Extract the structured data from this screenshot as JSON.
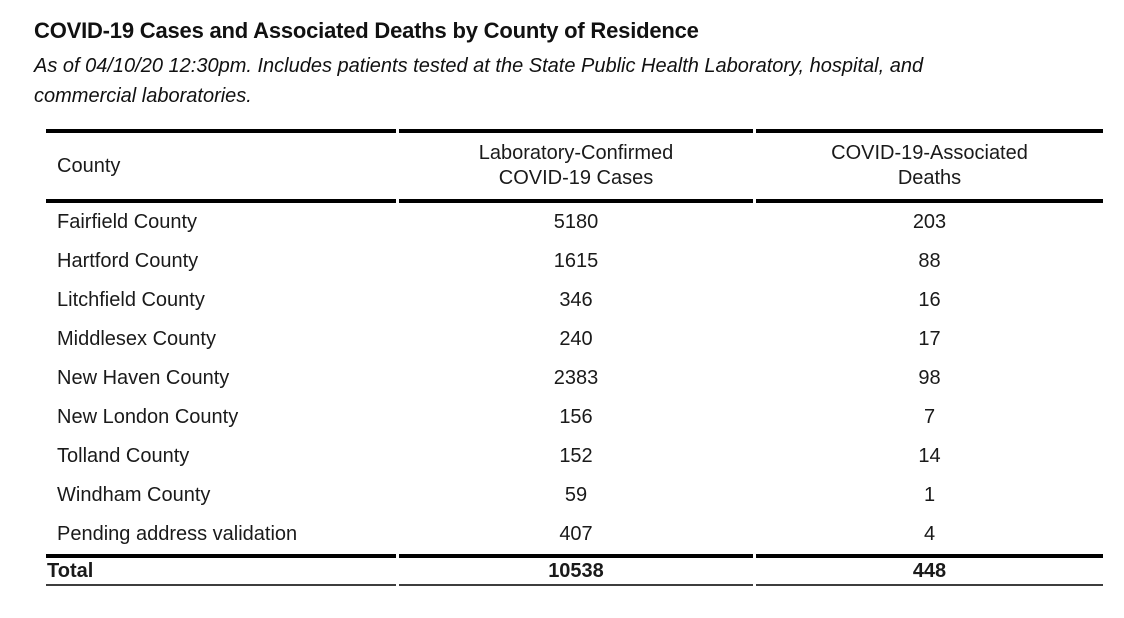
{
  "page": {
    "title": "COVID-19 Cases and Associated Deaths by County of Residence",
    "subtitle_line1": "As of 04/10/20 12:30pm. Includes patients tested at the State Public Health Laboratory, hospital, and",
    "subtitle_line2": "commercial laboratories."
  },
  "table": {
    "columns": [
      {
        "lines": [
          "County"
        ]
      },
      {
        "lines": [
          "Laboratory-Confirmed",
          "COVID-19 Cases"
        ]
      },
      {
        "lines": [
          "COVID-19-Associated",
          "Deaths"
        ]
      }
    ],
    "rows": [
      {
        "county": "Fairfield County",
        "cases": "5180",
        "deaths": "203"
      },
      {
        "county": "Hartford County",
        "cases": "1615",
        "deaths": "88"
      },
      {
        "county": "Litchfield County",
        "cases": "346",
        "deaths": "16"
      },
      {
        "county": "Middlesex County",
        "cases": "240",
        "deaths": "17"
      },
      {
        "county": "New Haven County",
        "cases": "2383",
        "deaths": "98"
      },
      {
        "county": "New London County",
        "cases": "156",
        "deaths": "7"
      },
      {
        "county": "Tolland County",
        "cases": "152",
        "deaths": "14"
      },
      {
        "county": "Windham County",
        "cases": "59",
        "deaths": "1"
      },
      {
        "county": "Pending address validation",
        "cases": "407",
        "deaths": "4"
      }
    ],
    "total": {
      "label": "Total",
      "cases": "10538",
      "deaths": "448"
    }
  },
  "colors": {
    "text": "#1a1a1a",
    "heavy_rule": "#000000",
    "bottom_rule": "#3d3d3d",
    "background": "#ffffff"
  }
}
